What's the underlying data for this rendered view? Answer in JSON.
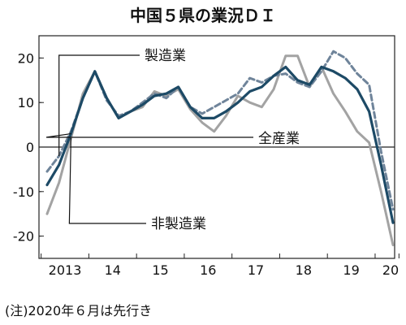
{
  "chart_data": {
    "type": "line",
    "title": "中国５県の業況ＤＩ",
    "note": "(注)2020年６月は先行き",
    "xlabel": "",
    "ylabel": "",
    "x_tick_labels": [
      "2013",
      "14",
      "15",
      "16",
      "17",
      "18",
      "19",
      "20"
    ],
    "y_ticks": [
      20,
      10,
      0,
      -10,
      -20
    ],
    "ylim": [
      -25,
      25
    ],
    "grid": false,
    "x": [
      "2013Q1",
      "2013Q2",
      "2013Q3",
      "2013Q4",
      "2014Q1",
      "2014Q2",
      "2014Q3",
      "2014Q4",
      "2015Q1",
      "2015Q2",
      "2015Q3",
      "2015Q4",
      "2016Q1",
      "2016Q2",
      "2016Q3",
      "2016Q4",
      "2017Q1",
      "2017Q2",
      "2017Q3",
      "2017Q4",
      "2018Q1",
      "2018Q2",
      "2018Q3",
      "2018Q4",
      "2019Q1",
      "2019Q2",
      "2019Q3",
      "2019Q4",
      "2020Q1",
      "2020Q2"
    ],
    "series": [
      {
        "name": "全産業",
        "color": "#1d4a66",
        "style": "solid",
        "values": [
          -8.5,
          -4,
          3,
          11,
          17,
          11,
          6.5,
          8,
          9.5,
          11.5,
          12,
          13.5,
          9,
          6.5,
          6.5,
          8,
          10,
          12.5,
          13.5,
          16,
          18,
          15,
          14,
          18,
          17,
          15.5,
          13,
          8,
          -4,
          -17
        ]
      },
      {
        "name": "製造業",
        "color": "#6f849a",
        "style": "dashed",
        "values": [
          -5.5,
          -2,
          3.5,
          11,
          17,
          10.5,
          7,
          8,
          10,
          12,
          11,
          13.5,
          9,
          7.5,
          9,
          10.5,
          12,
          15.5,
          14.5,
          16,
          16.5,
          14.5,
          13.5,
          17,
          21.5,
          20,
          16.5,
          14,
          -1,
          -14
        ]
      },
      {
        "name": "非製造業",
        "color": "#a3a3a3",
        "style": "solid",
        "values": [
          -15,
          -8,
          2,
          12,
          17,
          11,
          6.5,
          8,
          9,
          12.5,
          11.5,
          13,
          8.5,
          5.5,
          3.5,
          7,
          11.5,
          10,
          9,
          13,
          20.5,
          20.5,
          13.5,
          18,
          12,
          8,
          3.5,
          1,
          -10,
          -22
        ]
      }
    ]
  }
}
